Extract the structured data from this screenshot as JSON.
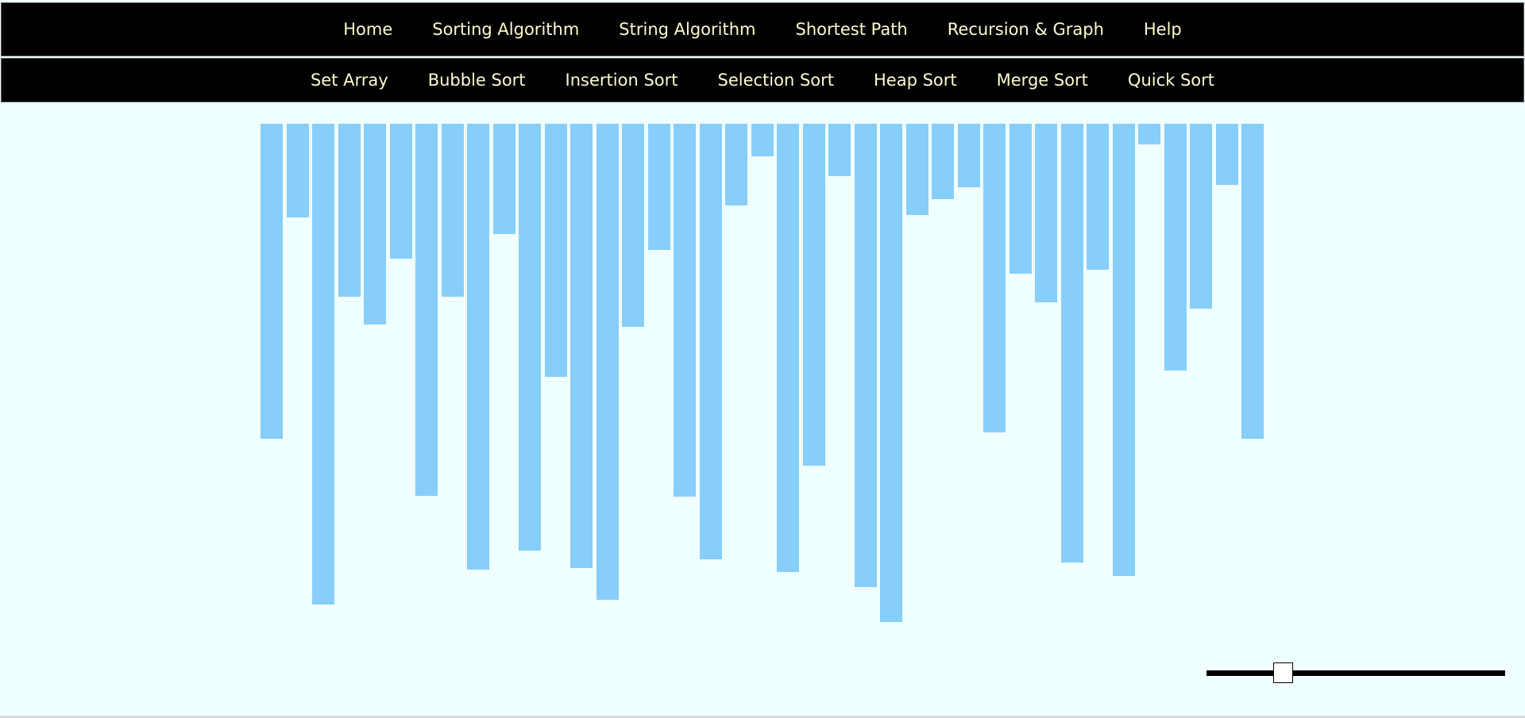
{
  "main_nav": {
    "items": [
      {
        "label": "Home",
        "name": "home"
      },
      {
        "label": "Sorting Algorithm",
        "name": "sorting-algorithm"
      },
      {
        "label": "String Algorithm",
        "name": "string-algorithm"
      },
      {
        "label": "Shortest Path",
        "name": "shortest-path"
      },
      {
        "label": "Recursion & Graph",
        "name": "recursion-graph"
      },
      {
        "label": "Help",
        "name": "help"
      }
    ]
  },
  "sub_nav": {
    "items": [
      {
        "label": "Set Array",
        "name": "set-array"
      },
      {
        "label": "Bubble Sort",
        "name": "bubble-sort"
      },
      {
        "label": "Insertion Sort",
        "name": "insertion-sort"
      },
      {
        "label": "Selection Sort",
        "name": "selection-sort"
      },
      {
        "label": "Heap Sort",
        "name": "heap-sort"
      },
      {
        "label": "Merge Sort",
        "name": "merge-sort"
      },
      {
        "label": "Quick Sort",
        "name": "quick-sort"
      }
    ]
  },
  "array": {
    "values": [
      397,
      118,
      606,
      218,
      253,
      170,
      469,
      218,
      562,
      139,
      538,
      319,
      560,
      600,
      256,
      159,
      470,
      549,
      103,
      41,
      565,
      431,
      66,
      584,
      628,
      115,
      95,
      80,
      389,
      189,
      225,
      553,
      184,
      570,
      26,
      311,
      233,
      77,
      397
    ],
    "max": 628,
    "bar_color": "#87cefa"
  },
  "speed_slider": {
    "value": 0.24
  },
  "colors": {
    "background": "#f0ffff",
    "nav_background": "#000000",
    "nav_text": "#fffacd",
    "bar": "#87cefa"
  }
}
